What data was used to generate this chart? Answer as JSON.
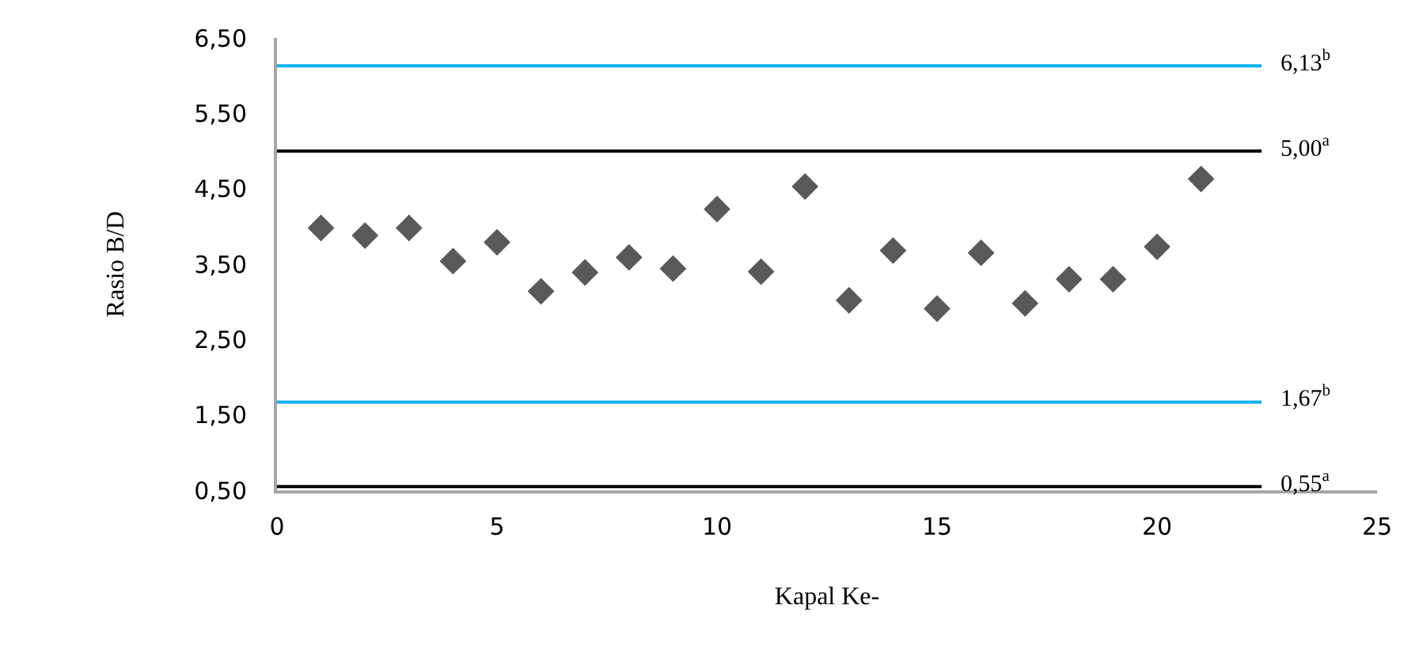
{
  "chart_data": {
    "type": "scatter",
    "xlabel": "Kapal Ke-",
    "ylabel": "Rasio B/D",
    "x": [
      1,
      2,
      3,
      4,
      5,
      6,
      7,
      8,
      9,
      10,
      11,
      12,
      13,
      14,
      15,
      16,
      17,
      18,
      19,
      20,
      21
    ],
    "series": [
      {
        "color": "#595959",
        "values": [
          3.98,
          3.88,
          3.98,
          3.54,
          3.79,
          3.14,
          3.39,
          3.59,
          3.44,
          4.23,
          3.4,
          4.53,
          3.02,
          3.68,
          2.91,
          3.65,
          2.98,
          3.3,
          3.3,
          3.73,
          4.63
        ]
      }
    ],
    "marker": "diamond",
    "grid": false,
    "xlim": [
      0,
      25
    ],
    "xticks": [
      0,
      5,
      10,
      15,
      20,
      25
    ],
    "ylim": [
      0.5,
      6.5
    ],
    "yticks": [
      {
        "value": 0.5,
        "label": "0,50"
      },
      {
        "value": 1.5,
        "label": "1,50"
      },
      {
        "value": 2.5,
        "label": "2,50"
      },
      {
        "value": 3.5,
        "label": "3,50"
      },
      {
        "value": 4.5,
        "label": "4,50"
      },
      {
        "value": 5.5,
        "label": "5,50"
      },
      {
        "value": 6.5,
        "label": "6,50"
      }
    ],
    "ref_lines": [
      {
        "axis": "y",
        "value": 6.13,
        "label": "6,13$^{b}$",
        "color": "#00b0f0"
      },
      {
        "axis": "y",
        "value": 5.0,
        "label": "5,00$^{a}$",
        "color": "#000000"
      },
      {
        "axis": "y",
        "value": 1.67,
        "label": "1,67$^{b}$",
        "color": "#00b0f0"
      },
      {
        "axis": "y",
        "value": 0.55,
        "label": "0,55$^{a}$",
        "color": "#000000"
      }
    ]
  }
}
